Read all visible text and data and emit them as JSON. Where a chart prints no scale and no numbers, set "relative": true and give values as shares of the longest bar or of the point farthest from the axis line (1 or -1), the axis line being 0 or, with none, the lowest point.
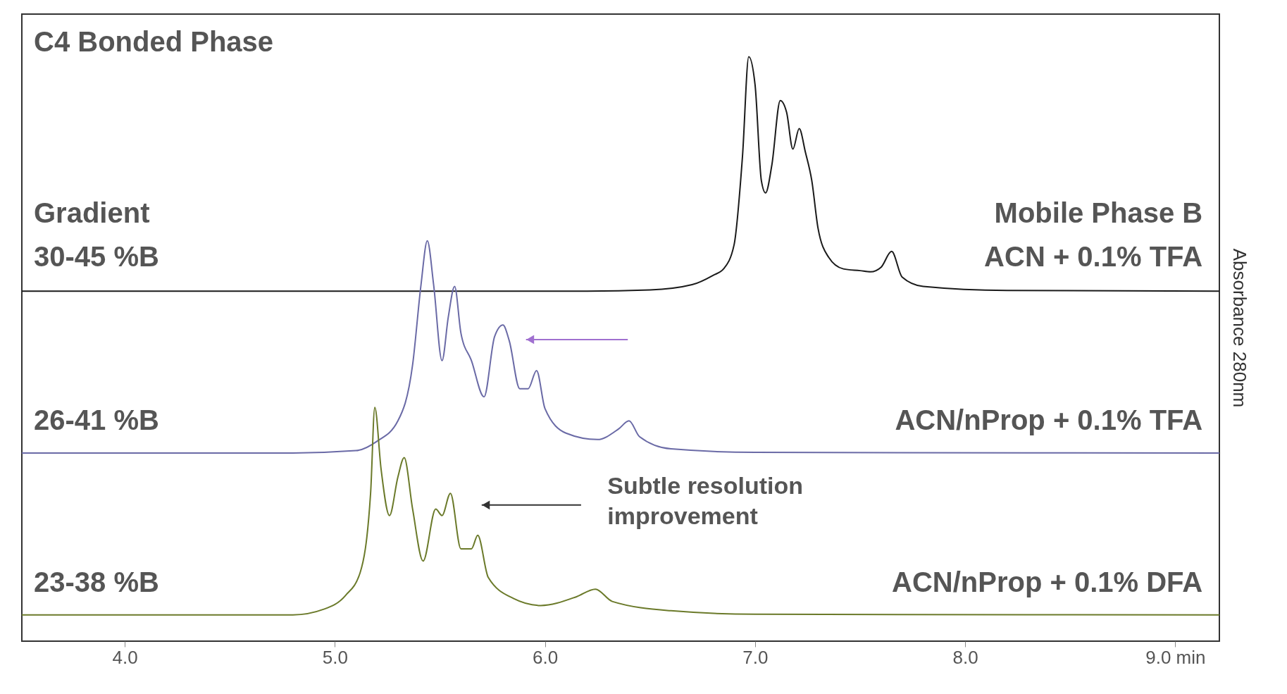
{
  "chart_data": {
    "type": "line",
    "title": "C4 Bonded Phase",
    "ylabel": "Absorbance 280nm",
    "relative": true,
    "xlim": [
      3.51,
      9.21
    ],
    "xticks": [
      {
        "value": 4,
        "label": "4.0"
      },
      {
        "value": 5,
        "label": "5.0"
      },
      {
        "value": 6,
        "label": "6.0"
      },
      {
        "value": 7,
        "label": "7.0"
      },
      {
        "value": 8,
        "label": "8.0"
      },
      {
        "value": 9,
        "label": "9.0 min"
      }
    ],
    "grid": false,
    "legend": false,
    "line_style": "solid",
    "marker": "none",
    "annotations": [
      "Gradient",
      "30-45 %B",
      "Mobile Phase B",
      "26-41 %B",
      "23-38 %B",
      "Subtle resolution\nimprovement"
    ],
    "series": [
      {
        "name": "ACN + 0.1% TFA",
        "color": "#1a1a1a",
        "x": [
          3.51,
          6.2,
          6.5,
          6.7,
          6.8,
          6.85,
          6.9,
          6.94,
          6.97,
          7.0,
          7.03,
          7.05,
          7.08,
          7.12,
          7.15,
          7.18,
          7.21,
          7.24,
          7.27,
          7.3,
          7.35,
          7.42,
          7.5,
          7.55,
          7.6,
          7.65,
          7.7,
          7.8,
          8.2,
          9.21
        ],
        "values": [
          0.599,
          0.599,
          0.601,
          0.61,
          0.626,
          0.637,
          0.678,
          0.829,
          1.0,
          0.952,
          0.788,
          0.767,
          0.815,
          0.925,
          0.905,
          0.842,
          0.877,
          0.836,
          0.788,
          0.706,
          0.657,
          0.637,
          0.634,
          0.632,
          0.64,
          0.667,
          0.623,
          0.607,
          0.6,
          0.599
        ]
      },
      {
        "name": "ACN/nProp + 0.1% TFA",
        "color": "#6a6aa6",
        "x": [
          3.51,
          4.8,
          5.1,
          5.2,
          5.3,
          5.37,
          5.41,
          5.44,
          5.47,
          5.51,
          5.54,
          5.57,
          5.6,
          5.65,
          5.71,
          5.76,
          5.8,
          5.83,
          5.88,
          5.92,
          5.96,
          6.0,
          6.1,
          6.25,
          6.35,
          6.4,
          6.45,
          6.6,
          7.0,
          9.21
        ],
        "values": [
          0.322,
          0.322,
          0.326,
          0.342,
          0.377,
          0.473,
          0.61,
          0.685,
          0.61,
          0.48,
          0.555,
          0.607,
          0.527,
          0.48,
          0.418,
          0.521,
          0.541,
          0.514,
          0.432,
          0.432,
          0.463,
          0.398,
          0.356,
          0.345,
          0.363,
          0.377,
          0.35,
          0.329,
          0.323,
          0.322
        ]
      },
      {
        "name": "ACN/nProp + 0.1% DFA",
        "color": "#6b7a2a",
        "x": [
          3.51,
          4.8,
          4.95,
          5.05,
          5.12,
          5.17,
          5.19,
          5.22,
          5.26,
          5.3,
          5.33,
          5.37,
          5.42,
          5.48,
          5.51,
          5.55,
          5.6,
          5.65,
          5.68,
          5.73,
          5.85,
          5.98,
          6.15,
          6.24,
          6.32,
          6.6,
          7.0,
          9.21
        ],
        "values": [
          0.045,
          0.045,
          0.055,
          0.078,
          0.117,
          0.253,
          0.4,
          0.294,
          0.215,
          0.281,
          0.314,
          0.226,
          0.137,
          0.226,
          0.215,
          0.253,
          0.158,
          0.158,
          0.181,
          0.109,
          0.073,
          0.061,
          0.076,
          0.089,
          0.068,
          0.052,
          0.046,
          0.045
        ]
      }
    ]
  }
}
